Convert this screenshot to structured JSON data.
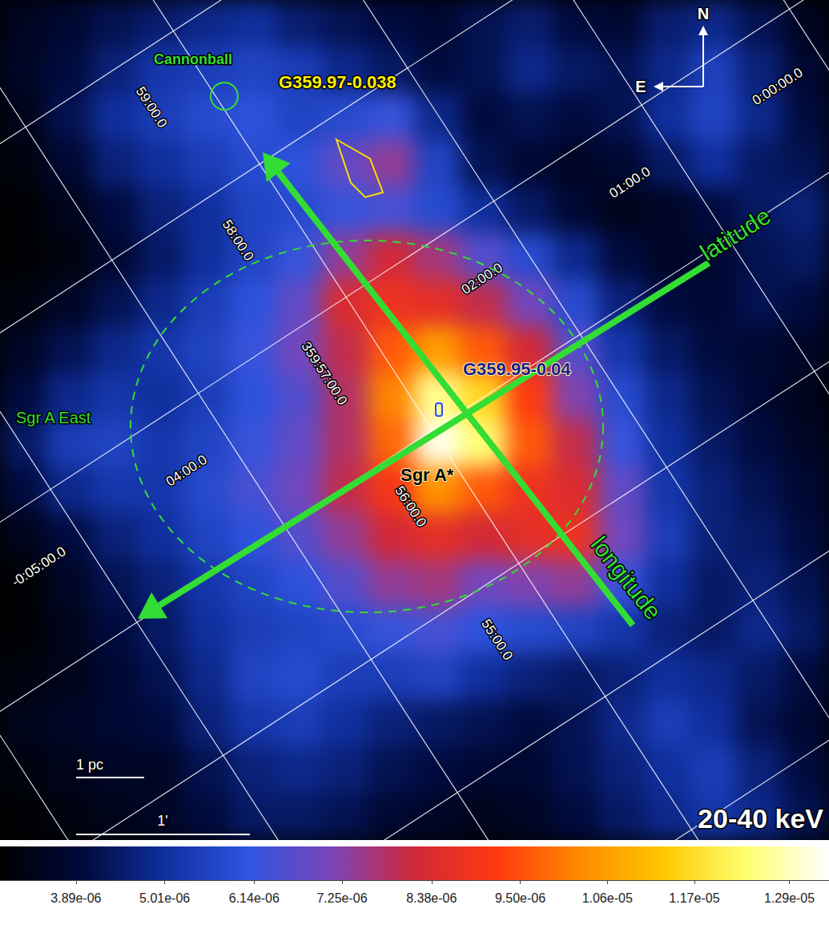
{
  "chart_data": {
    "type": "heatmap",
    "title": "20-40 keV",
    "grid": true,
    "cells": [
      [
        3.5e-06,
        3.8e-06,
        4.2e-06,
        4.5e-06,
        4.8e-06,
        5e-06,
        4.5e-06,
        4.2e-06,
        4e-06,
        3.8e-06,
        4.2e-06,
        4.5e-06,
        4e-06,
        3.8e-06,
        4.5e-06,
        4.8e-06,
        4.2e-06,
        3.5e-06
      ],
      [
        3.6e-06,
        4e-06,
        4.6e-06,
        5.2e-06,
        5.4e-06,
        5.6e-06,
        5.4e-06,
        4.8e-06,
        4.4e-06,
        4e-06,
        4.2e-06,
        4.8e-06,
        4.4e-06,
        4.2e-06,
        4.8e-06,
        5.5e-06,
        4.6e-06,
        3.8e-06
      ],
      [
        3.4e-06,
        4.2e-06,
        5e-06,
        5.4e-06,
        5.8e-06,
        6e-06,
        5.6e-06,
        5.8e-06,
        6.2e-06,
        4.8e-06,
        4e-06,
        4.2e-06,
        4e-06,
        4.2e-06,
        5e-06,
        5.6e-06,
        4.8e-06,
        4e-06
      ],
      [
        3.2e-06,
        3.8e-06,
        4.6e-06,
        5e-06,
        5.4e-06,
        5.8e-06,
        6e-06,
        6.8e-06,
        7.4e-06,
        5.6e-06,
        4.2e-06,
        3.8e-06,
        3.6e-06,
        3.8e-06,
        4.4e-06,
        5e-06,
        4.4e-06,
        4.2e-06
      ],
      [
        3e-06,
        3.4e-06,
        4e-06,
        4.6e-06,
        5e-06,
        5.6e-06,
        5.8e-06,
        6.2e-06,
        6.4e-06,
        5.8e-06,
        5e-06,
        4.4e-06,
        3.8e-06,
        3.4e-06,
        3.6e-06,
        4e-06,
        4.4e-06,
        4.6e-06
      ],
      [
        3e-06,
        3.2e-06,
        3.8e-06,
        4.4e-06,
        5e-06,
        5.6e-06,
        6.2e-06,
        7.4e-06,
        8.2e-06,
        7.6e-06,
        6.6e-06,
        5.8e-06,
        4.8e-06,
        4e-06,
        3.6e-06,
        3.8e-06,
        4.2e-06,
        4.4e-06
      ],
      [
        3.2e-06,
        3.6e-06,
        4.2e-06,
        4.8e-06,
        5.4e-06,
        6e-06,
        6.8e-06,
        8.4e-06,
        8.8e-06,
        8.6e-06,
        8e-06,
        7e-06,
        5.8e-06,
        4.6e-06,
        4e-06,
        3.8e-06,
        4.2e-06,
        4e-06
      ],
      [
        3.6e-06,
        4.2e-06,
        4.8e-06,
        5.2e-06,
        5.6e-06,
        6.2e-06,
        7e-06,
        8e-06,
        9.6e-06,
        1.06e-05,
        9.6e-06,
        8.2e-06,
        6.6e-06,
        5.2e-06,
        4.4e-06,
        4e-06,
        3.8e-06,
        3.6e-06
      ],
      [
        4e-06,
        4.8e-06,
        5.2e-06,
        5e-06,
        5.4e-06,
        6e-06,
        6.6e-06,
        7.8e-06,
        1.02e-05,
        1.26e-05,
        1.16e-05,
        9.2e-06,
        7.2e-06,
        5.8e-06,
        4.8e-06,
        4.2e-06,
        3.8e-06,
        3.4e-06
      ],
      [
        4.4e-06,
        5.4e-06,
        5.6e-06,
        5.2e-06,
        5.6e-06,
        6.2e-06,
        6.8e-06,
        7.8e-06,
        9.8e-06,
        1.32e-05,
        1.24e-05,
        9.6e-06,
        8e-06,
        6.2e-06,
        5e-06,
        4.4e-06,
        4e-06,
        3.6e-06
      ],
      [
        4e-06,
        4.8e-06,
        5.2e-06,
        5.2e-06,
        5.8e-06,
        6.4e-06,
        7e-06,
        8e-06,
        9e-06,
        1.04e-05,
        9.6e-06,
        8.8e-06,
        8.4e-06,
        6.8e-06,
        5.2e-06,
        4.6e-06,
        4.2e-06,
        3.8e-06
      ],
      [
        3.4e-06,
        4e-06,
        4.6e-06,
        5e-06,
        5.6e-06,
        6e-06,
        6.6e-06,
        7.4e-06,
        8.2e-06,
        8.6e-06,
        8.2e-06,
        8.6e-06,
        8.8e-06,
        7e-06,
        5.4e-06,
        4.6e-06,
        4.4e-06,
        4e-06
      ],
      [
        3e-06,
        3.6e-06,
        4.2e-06,
        4.6e-06,
        5.2e-06,
        5.6e-06,
        6e-06,
        6.6e-06,
        7.4e-06,
        7.6e-06,
        7e-06,
        7.2e-06,
        7.4e-06,
        6.2e-06,
        5e-06,
        4.4e-06,
        4.6e-06,
        4.2e-06
      ],
      [
        3e-06,
        3.4e-06,
        4e-06,
        4.4e-06,
        5e-06,
        5.4e-06,
        5.6e-06,
        5.8e-06,
        6.2e-06,
        6.4e-06,
        6e-06,
        5.8e-06,
        5.6e-06,
        5.2e-06,
        4.6e-06,
        4.4e-06,
        4.8e-06,
        4.4e-06
      ],
      [
        3.2e-06,
        3.4e-06,
        3.8e-06,
        4.2e-06,
        4.8e-06,
        5.6e-06,
        5.8e-06,
        5.4e-06,
        5.4e-06,
        5.6e-06,
        5e-06,
        4.6e-06,
        4.4e-06,
        4.6e-06,
        5e-06,
        4.8e-06,
        4.4e-06,
        4e-06
      ],
      [
        3.4e-06,
        3.6e-06,
        3.8e-06,
        4e-06,
        4.6e-06,
        5.2e-06,
        5.4e-06,
        5e-06,
        4.6e-06,
        4.4e-06,
        4.2e-06,
        4e-06,
        4.2e-06,
        4.8e-06,
        5.4e-06,
        5e-06,
        4.2e-06,
        3.8e-06
      ],
      [
        3.2e-06,
        3.4e-06,
        3.6e-06,
        3.6e-06,
        4.2e-06,
        4.6e-06,
        4.8e-06,
        4.6e-06,
        4.2e-06,
        4e-06,
        3.8e-06,
        3.8e-06,
        4.2e-06,
        4.6e-06,
        5e-06,
        5.4e-06,
        4.6e-06,
        4e-06
      ],
      [
        3e-06,
        3.2e-06,
        3.4e-06,
        3.6e-06,
        4e-06,
        4.4e-06,
        4.4e-06,
        4.2e-06,
        3.8e-06,
        3.6e-06,
        3.4e-06,
        3.6e-06,
        4e-06,
        4.4e-06,
        4.8e-06,
        5.2e-06,
        4.8e-06,
        4.2e-06
      ]
    ],
    "colorbar": {
      "range": [
        2.93e-06,
        1.34e-05
      ],
      "ticks": [
        {
          "value": 3.89e-06,
          "label": "3.89e-06"
        },
        {
          "value": 5.01e-06,
          "label": "5.01e-06"
        },
        {
          "value": 6.14e-06,
          "label": "6.14e-06"
        },
        {
          "value": 7.25e-06,
          "label": "7.25e-06"
        },
        {
          "value": 8.38e-06,
          "label": "8.38e-06"
        },
        {
          "value": 9.5e-06,
          "label": "9.50e-06"
        },
        {
          "value": 1.06e-05,
          "label": "1.06e-05"
        },
        {
          "value": 1.17e-05,
          "label": "1.17e-05"
        },
        {
          "value": 1.29e-05,
          "label": "1.29e-05"
        }
      ]
    },
    "grid_labels": {
      "longitude": [
        "59:00.0",
        "58:00.0",
        "359:57:00.0",
        "56:00.0",
        "55:00.0"
      ],
      "latitude": [
        "0:00:00.0",
        "01:00.0",
        "02:00.0",
        null,
        "04:00.0",
        "-0:05:00.0"
      ]
    },
    "labels": {
      "cannonball": "Cannonball",
      "source_north": "G359.97-0.038",
      "source_center": "G359.95-0.04",
      "center": "Sgr A*",
      "remnant": "Sgr A East",
      "north": "N",
      "east": "E",
      "latitude_arrow": "latitude",
      "longitude_arrow": "longitude",
      "scale_pc": "1 pc",
      "scale_arcmin": "1'"
    }
  }
}
